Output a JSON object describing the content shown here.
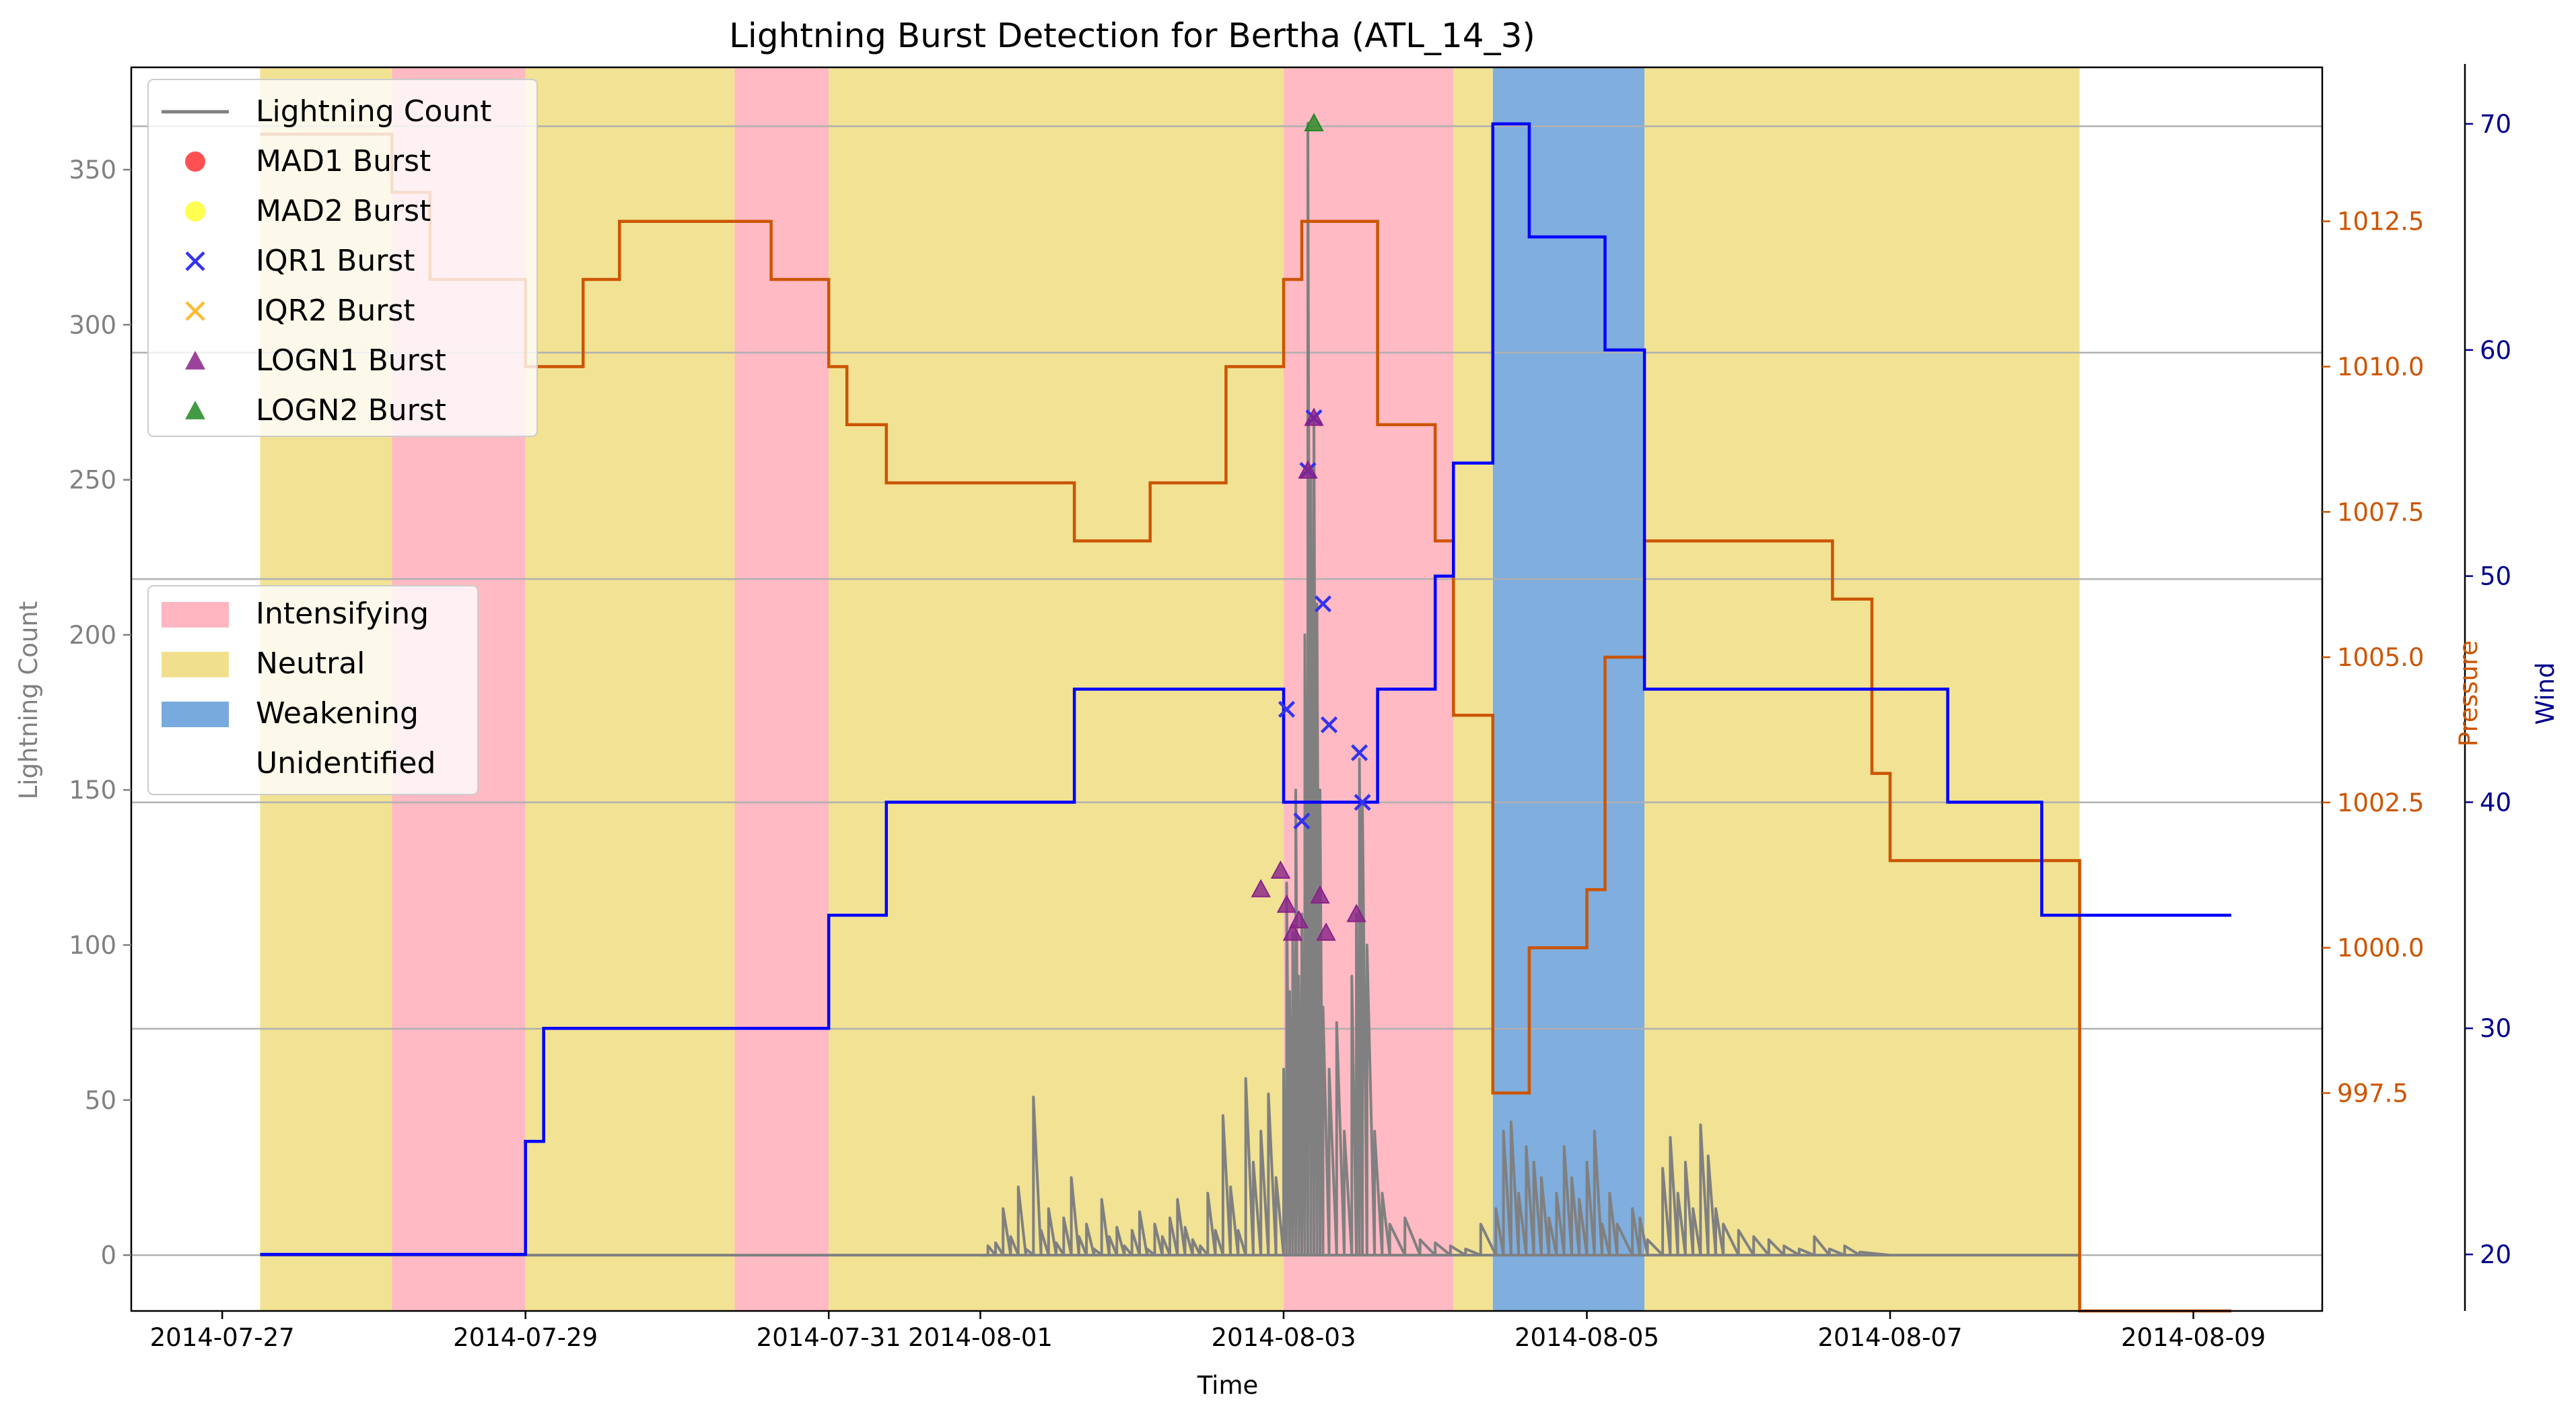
{
  "chart_data": {
    "type": "line",
    "title": "Lightning Burst Detection for Bertha (ATL_14_3)",
    "xlabel": "Time",
    "ylabel": "Lightning Count",
    "ylabel_right1": "Pressure",
    "ylabel_right2": "Wind",
    "grid": "horizontal",
    "colors": {
      "lightning": "#808080",
      "pressure": "#cc5500",
      "wind": "#0000ff",
      "intensifying": "#ffb6c1",
      "neutral": "#f0e08e",
      "weakening": "#78aadd",
      "wind_axis": "#00008b"
    },
    "x_axis": {
      "unit": "days since 2014-07-27",
      "range": [
        -0.6,
        13.85
      ],
      "ticks": [
        {
          "x": 0,
          "label": "2014-07-27"
        },
        {
          "x": 2,
          "label": "2014-07-29"
        },
        {
          "x": 4,
          "label": "2014-07-31"
        },
        {
          "x": 5,
          "label": "2014-08-01"
        },
        {
          "x": 7,
          "label": "2014-08-03"
        },
        {
          "x": 9,
          "label": "2014-08-05"
        },
        {
          "x": 11,
          "label": "2014-08-07"
        },
        {
          "x": 13,
          "label": "2014-08-09"
        }
      ]
    },
    "y_left": {
      "range": [
        -18,
        383
      ],
      "ticks": [
        0,
        50,
        100,
        150,
        200,
        250,
        300,
        350
      ]
    },
    "y_pressure": {
      "range": [
        993.75,
        1015.15
      ],
      "ticks": [
        997.5,
        1000.0,
        1002.5,
        1005.0,
        1007.5,
        1010.0,
        1012.5
      ]
    },
    "y_wind": {
      "range": [
        17.5,
        72.5
      ],
      "ticks": [
        20,
        30,
        40,
        50,
        60,
        70
      ]
    },
    "gridlines_left": [
      0,
      73,
      146,
      218,
      291,
      364
    ],
    "phases": [
      {
        "start": 0.25,
        "end": 1.12,
        "phase": "Neutral"
      },
      {
        "start": 1.12,
        "end": 2.0,
        "phase": "Intensifying"
      },
      {
        "start": 2.0,
        "end": 3.38,
        "phase": "Neutral"
      },
      {
        "start": 3.38,
        "end": 4.0,
        "phase": "Intensifying"
      },
      {
        "start": 4.0,
        "end": 7.0,
        "phase": "Neutral"
      },
      {
        "start": 7.0,
        "end": 8.12,
        "phase": "Intensifying"
      },
      {
        "start": 8.12,
        "end": 8.38,
        "phase": "Neutral"
      },
      {
        "start": 8.38,
        "end": 9.38,
        "phase": "Weakening"
      },
      {
        "start": 9.38,
        "end": 12.25,
        "phase": "Neutral"
      }
    ],
    "series": [
      {
        "name": "Lightning Count",
        "type": "spikes",
        "points": [
          [
            5.0,
            0
          ],
          [
            5.05,
            3
          ],
          [
            5.1,
            4
          ],
          [
            5.15,
            15
          ],
          [
            5.2,
            6
          ],
          [
            5.25,
            22
          ],
          [
            5.3,
            2
          ],
          [
            5.35,
            51
          ],
          [
            5.4,
            8
          ],
          [
            5.45,
            15
          ],
          [
            5.5,
            4
          ],
          [
            5.55,
            12
          ],
          [
            5.6,
            25
          ],
          [
            5.65,
            6
          ],
          [
            5.7,
            10
          ],
          [
            5.75,
            2
          ],
          [
            5.8,
            18
          ],
          [
            5.85,
            6
          ],
          [
            5.9,
            9
          ],
          [
            5.95,
            3
          ],
          [
            6.0,
            8
          ],
          [
            6.05,
            14
          ],
          [
            6.1,
            2
          ],
          [
            6.15,
            10
          ],
          [
            6.2,
            6
          ],
          [
            6.25,
            12
          ],
          [
            6.3,
            18
          ],
          [
            6.35,
            9
          ],
          [
            6.4,
            5
          ],
          [
            6.45,
            3
          ],
          [
            6.5,
            20
          ],
          [
            6.55,
            8
          ],
          [
            6.6,
            45
          ],
          [
            6.65,
            22
          ],
          [
            6.7,
            8
          ],
          [
            6.75,
            57
          ],
          [
            6.8,
            30
          ],
          [
            6.85,
            40
          ],
          [
            6.9,
            52
          ],
          [
            6.95,
            25
          ],
          [
            7.0,
            60
          ],
          [
            7.02,
            120
          ],
          [
            7.04,
            85
          ],
          [
            7.06,
            104
          ],
          [
            7.08,
            150
          ],
          [
            7.1,
            90
          ],
          [
            7.12,
            110
          ],
          [
            7.14,
            200
          ],
          [
            7.16,
            365
          ],
          [
            7.18,
            253
          ],
          [
            7.2,
            270
          ],
          [
            7.22,
            210
          ],
          [
            7.24,
            150
          ],
          [
            7.26,
            80
          ],
          [
            7.3,
            60
          ],
          [
            7.35,
            75
          ],
          [
            7.4,
            40
          ],
          [
            7.45,
            90
          ],
          [
            7.48,
            110
          ],
          [
            7.5,
            160
          ],
          [
            7.52,
            145
          ],
          [
            7.55,
            100
          ],
          [
            7.6,
            40
          ],
          [
            7.65,
            20
          ],
          [
            7.7,
            10
          ],
          [
            7.8,
            12
          ],
          [
            7.9,
            5
          ],
          [
            8.0,
            4
          ],
          [
            8.1,
            3
          ],
          [
            8.2,
            2
          ],
          [
            8.3,
            10
          ],
          [
            8.4,
            15
          ],
          [
            8.45,
            40
          ],
          [
            8.5,
            43
          ],
          [
            8.55,
            20
          ],
          [
            8.6,
            35
          ],
          [
            8.65,
            30
          ],
          [
            8.7,
            25
          ],
          [
            8.75,
            12
          ],
          [
            8.8,
            20
          ],
          [
            8.85,
            35
          ],
          [
            8.9,
            25
          ],
          [
            8.95,
            18
          ],
          [
            9.0,
            30
          ],
          [
            9.05,
            40
          ],
          [
            9.1,
            10
          ],
          [
            9.15,
            20
          ],
          [
            9.2,
            10
          ],
          [
            9.3,
            15
          ],
          [
            9.35,
            12
          ],
          [
            9.4,
            5
          ],
          [
            9.5,
            28
          ],
          [
            9.55,
            38
          ],
          [
            9.6,
            20
          ],
          [
            9.65,
            30
          ],
          [
            9.7,
            15
          ],
          [
            9.75,
            42
          ],
          [
            9.8,
            32
          ],
          [
            9.85,
            15
          ],
          [
            9.9,
            10
          ],
          [
            10.0,
            8
          ],
          [
            10.1,
            6
          ],
          [
            10.2,
            5
          ],
          [
            10.3,
            3
          ],
          [
            10.4,
            2
          ],
          [
            10.5,
            6
          ],
          [
            10.6,
            2
          ],
          [
            10.7,
            3
          ],
          [
            10.8,
            1
          ],
          [
            11.0,
            0
          ]
        ]
      },
      {
        "name": "Pressure",
        "type": "step",
        "points": [
          [
            0.25,
            1014
          ],
          [
            1.12,
            1013
          ],
          [
            1.37,
            1011.5
          ],
          [
            2.0,
            1010
          ],
          [
            2.38,
            1011.5
          ],
          [
            2.62,
            1012.5
          ],
          [
            3.62,
            1011.5
          ],
          [
            4.0,
            1010
          ],
          [
            4.12,
            1009
          ],
          [
            4.38,
            1008
          ],
          [
            5.62,
            1007
          ],
          [
            6.12,
            1008
          ],
          [
            6.62,
            1010
          ],
          [
            7.0,
            1011.5
          ],
          [
            7.12,
            1012.5
          ],
          [
            7.62,
            1009
          ],
          [
            8.0,
            1007
          ],
          [
            8.12,
            1004
          ],
          [
            8.38,
            997.5
          ],
          [
            8.62,
            1000
          ],
          [
            9.0,
            1001
          ],
          [
            9.12,
            1005
          ],
          [
            9.38,
            1007
          ],
          [
            10.62,
            1006
          ],
          [
            10.88,
            1003
          ],
          [
            11.0,
            1001.5
          ],
          [
            12.25,
            993.75
          ],
          [
            13.25,
            993.75
          ]
        ]
      },
      {
        "name": "Wind",
        "type": "step",
        "points": [
          [
            0.25,
            20
          ],
          [
            2.0,
            25
          ],
          [
            2.12,
            30
          ],
          [
            4.0,
            35
          ],
          [
            4.38,
            40
          ],
          [
            5.62,
            45
          ],
          [
            7.0,
            40
          ],
          [
            7.62,
            45
          ],
          [
            8.0,
            50
          ],
          [
            8.12,
            55
          ],
          [
            8.38,
            70
          ],
          [
            8.62,
            65
          ],
          [
            9.12,
            60
          ],
          [
            9.38,
            45
          ],
          [
            11.38,
            40
          ],
          [
            12.0,
            35
          ],
          [
            13.25,
            35
          ]
        ]
      }
    ],
    "bursts": [
      {
        "method": "IQR1",
        "points": [
          [
            7.02,
            176
          ],
          [
            7.12,
            140
          ],
          [
            7.16,
            253
          ],
          [
            7.2,
            270
          ],
          [
            7.26,
            210
          ],
          [
            7.3,
            171
          ],
          [
            7.5,
            162
          ],
          [
            7.52,
            146
          ]
        ]
      },
      {
        "method": "LOGN1",
        "points": [
          [
            6.85,
            118
          ],
          [
            6.98,
            124
          ],
          [
            7.02,
            113
          ],
          [
            7.06,
            104
          ],
          [
            7.1,
            108
          ],
          [
            7.16,
            253
          ],
          [
            7.2,
            270
          ],
          [
            7.24,
            116
          ],
          [
            7.28,
            104
          ],
          [
            7.48,
            110
          ]
        ]
      },
      {
        "method": "LOGN2",
        "points": [
          [
            7.2,
            365
          ]
        ]
      }
    ],
    "legend_methods": [
      {
        "label": "Lightning Count",
        "marker": "line",
        "color": "#808080"
      },
      {
        "label": "MAD1 Burst",
        "marker": "circle",
        "color": "#ff3333"
      },
      {
        "label": "MAD2 Burst",
        "marker": "circle",
        "color": "#ffff33"
      },
      {
        "label": "IQR1 Burst",
        "marker": "x",
        "color": "#3333ee"
      },
      {
        "label": "IQR2 Burst",
        "marker": "x",
        "color": "#ffbb33"
      },
      {
        "label": "LOGN1 Burst",
        "marker": "triangle",
        "color": "#882288"
      },
      {
        "label": "LOGN2 Burst",
        "marker": "triangle",
        "color": "#228822"
      }
    ],
    "legend_phases": [
      {
        "label": "Intensifying",
        "color": "#ffb6c1"
      },
      {
        "label": "Neutral",
        "color": "#f0e08e"
      },
      {
        "label": "Weakening",
        "color": "#78aadd"
      },
      {
        "label": "Unidentified",
        "color": "#ffffff"
      }
    ]
  }
}
